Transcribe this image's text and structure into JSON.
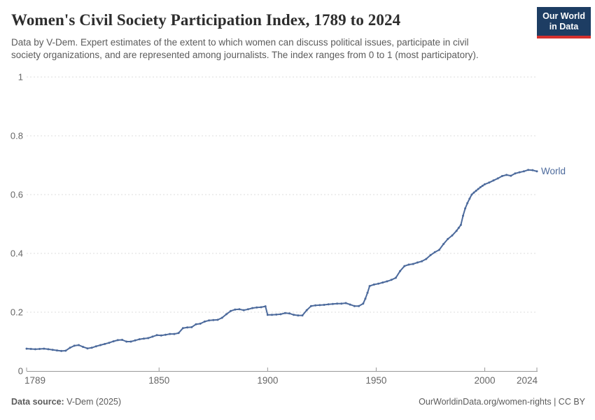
{
  "header": {
    "title": "Women's Civil Society Participation Index, 1789 to 2024",
    "subtitle_line1": "Data by V-Dem. Expert estimates of the extent to which women can discuss political issues, participate in civil",
    "subtitle_line2": "society organizations, and are represented among journalists. The index ranges from 0 to 1 (most participatory)."
  },
  "logo": {
    "line1": "Our World",
    "line2": "in Data"
  },
  "footer": {
    "source_label": "Data source:",
    "source_value": " V-Dem (2025)",
    "link": "OurWorldinData.org/women-rights",
    "license": " | CC BY"
  },
  "colors": {
    "line": "#4c6a9c",
    "grid": "#dddddd",
    "axis": "#999999",
    "tick_label": "#666666",
    "logo_bg": "#1d3d63",
    "logo_red": "#d4312e"
  },
  "chart_data": {
    "type": "line",
    "title": "Women's Civil Society Participation Index, 1789 to 2024",
    "xlabel": "",
    "ylabel": "",
    "xlim": [
      1789,
      2024
    ],
    "ylim": [
      0,
      1
    ],
    "x_ticks": [
      1789,
      1850,
      1900,
      1950,
      2000,
      2024
    ],
    "y_ticks": [
      0,
      0.2,
      0.4,
      0.6,
      0.8,
      1
    ],
    "grid": "horizontal-dashed",
    "legend_position": "end-of-line",
    "series": [
      {
        "name": "World",
        "color": "#4c6a9c",
        "points": [
          [
            1789,
            0.076
          ],
          [
            1791,
            0.075
          ],
          [
            1793,
            0.074
          ],
          [
            1795,
            0.075
          ],
          [
            1797,
            0.076
          ],
          [
            1799,
            0.074
          ],
          [
            1801,
            0.072
          ],
          [
            1803,
            0.07
          ],
          [
            1805,
            0.068
          ],
          [
            1807,
            0.069
          ],
          [
            1809,
            0.079
          ],
          [
            1811,
            0.086
          ],
          [
            1813,
            0.088
          ],
          [
            1815,
            0.082
          ],
          [
            1817,
            0.077
          ],
          [
            1819,
            0.079
          ],
          [
            1821,
            0.084
          ],
          [
            1823,
            0.088
          ],
          [
            1825,
            0.092
          ],
          [
            1827,
            0.096
          ],
          [
            1829,
            0.101
          ],
          [
            1831,
            0.105
          ],
          [
            1833,
            0.106
          ],
          [
            1835,
            0.1
          ],
          [
            1837,
            0.1
          ],
          [
            1839,
            0.104
          ],
          [
            1841,
            0.108
          ],
          [
            1843,
            0.11
          ],
          [
            1845,
            0.112
          ],
          [
            1847,
            0.117
          ],
          [
            1849,
            0.122
          ],
          [
            1851,
            0.121
          ],
          [
            1853,
            0.123
          ],
          [
            1855,
            0.126
          ],
          [
            1857,
            0.126
          ],
          [
            1859,
            0.129
          ],
          [
            1861,
            0.146
          ],
          [
            1863,
            0.148
          ],
          [
            1865,
            0.149
          ],
          [
            1867,
            0.159
          ],
          [
            1869,
            0.161
          ],
          [
            1871,
            0.168
          ],
          [
            1873,
            0.172
          ],
          [
            1875,
            0.173
          ],
          [
            1877,
            0.174
          ],
          [
            1879,
            0.181
          ],
          [
            1881,
            0.193
          ],
          [
            1883,
            0.204
          ],
          [
            1885,
            0.209
          ],
          [
            1887,
            0.21
          ],
          [
            1889,
            0.207
          ],
          [
            1891,
            0.21
          ],
          [
            1893,
            0.214
          ],
          [
            1895,
            0.216
          ],
          [
            1897,
            0.217
          ],
          [
            1899,
            0.22
          ],
          [
            1900,
            0.191
          ],
          [
            1902,
            0.191
          ],
          [
            1904,
            0.192
          ],
          [
            1906,
            0.193
          ],
          [
            1908,
            0.197
          ],
          [
            1910,
            0.196
          ],
          [
            1912,
            0.191
          ],
          [
            1914,
            0.189
          ],
          [
            1916,
            0.189
          ],
          [
            1918,
            0.207
          ],
          [
            1920,
            0.221
          ],
          [
            1922,
            0.223
          ],
          [
            1924,
            0.224
          ],
          [
            1926,
            0.225
          ],
          [
            1928,
            0.227
          ],
          [
            1930,
            0.228
          ],
          [
            1932,
            0.229
          ],
          [
            1934,
            0.229
          ],
          [
            1936,
            0.231
          ],
          [
            1938,
            0.226
          ],
          [
            1940,
            0.221
          ],
          [
            1942,
            0.221
          ],
          [
            1944,
            0.229
          ],
          [
            1945,
            0.246
          ],
          [
            1946,
            0.266
          ],
          [
            1947,
            0.289
          ],
          [
            1949,
            0.294
          ],
          [
            1951,
            0.297
          ],
          [
            1953,
            0.301
          ],
          [
            1955,
            0.305
          ],
          [
            1957,
            0.31
          ],
          [
            1959,
            0.317
          ],
          [
            1961,
            0.34
          ],
          [
            1963,
            0.357
          ],
          [
            1965,
            0.362
          ],
          [
            1967,
            0.364
          ],
          [
            1969,
            0.369
          ],
          [
            1971,
            0.373
          ],
          [
            1973,
            0.381
          ],
          [
            1975,
            0.394
          ],
          [
            1977,
            0.404
          ],
          [
            1979,
            0.412
          ],
          [
            1981,
            0.432
          ],
          [
            1983,
            0.449
          ],
          [
            1985,
            0.461
          ],
          [
            1987,
            0.477
          ],
          [
            1988,
            0.487
          ],
          [
            1989,
            0.497
          ],
          [
            1990,
            0.528
          ],
          [
            1991,
            0.553
          ],
          [
            1992,
            0.571
          ],
          [
            1993,
            0.586
          ],
          [
            1994,
            0.6
          ],
          [
            1995,
            0.607
          ],
          [
            1996,
            0.613
          ],
          [
            1997,
            0.619
          ],
          [
            1998,
            0.625
          ],
          [
            1999,
            0.63
          ],
          [
            2000,
            0.635
          ],
          [
            2002,
            0.641
          ],
          [
            2004,
            0.648
          ],
          [
            2006,
            0.655
          ],
          [
            2008,
            0.663
          ],
          [
            2010,
            0.667
          ],
          [
            2012,
            0.664
          ],
          [
            2014,
            0.672
          ],
          [
            2016,
            0.676
          ],
          [
            2018,
            0.679
          ],
          [
            2020,
            0.684
          ],
          [
            2022,
            0.683
          ],
          [
            2024,
            0.679
          ]
        ]
      }
    ]
  }
}
